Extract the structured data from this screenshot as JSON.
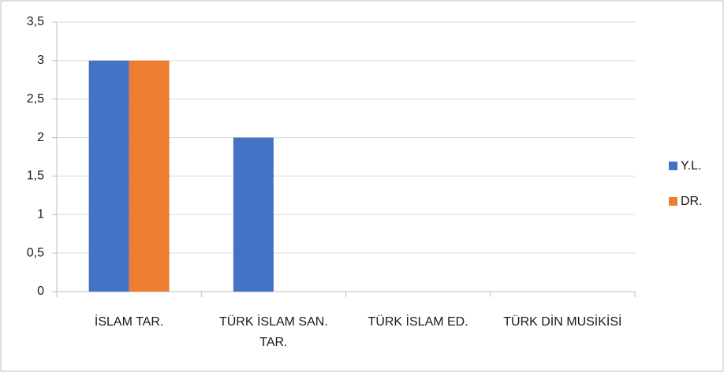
{
  "chart_data": {
    "type": "bar",
    "categories": [
      "İSLAM TAR.",
      "TÜRK İSLAM SAN. TAR.",
      "TÜRK İSLAM ED.",
      "TÜRK DİN MUSİKİSİ"
    ],
    "series": [
      {
        "name": "Y.L.",
        "color": "#4472c4",
        "values": [
          3,
          2,
          0,
          0
        ]
      },
      {
        "name": "DR.",
        "color": "#ed7d31",
        "values": [
          3,
          0,
          0,
          0
        ]
      }
    ],
    "ylim": [
      0,
      3.5
    ],
    "yticks": [
      0,
      {
        "value": 0.5,
        "label": "0,5"
      },
      1,
      {
        "value": 1.5,
        "label": "1,5"
      },
      2,
      {
        "value": 2.5,
        "label": "2,5"
      },
      3,
      {
        "value": 3.5,
        "label": "3,5"
      }
    ],
    "grid": true,
    "legend": "right"
  }
}
